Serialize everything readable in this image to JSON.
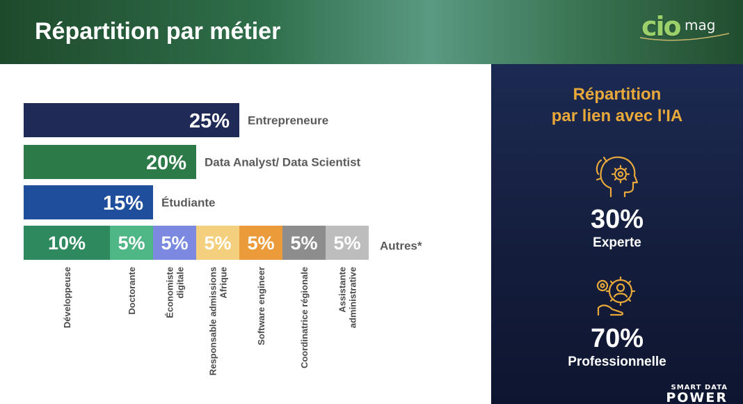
{
  "header": {
    "title": "Répartition par métier",
    "logo": {
      "main": "cio",
      "sub": "mag"
    }
  },
  "chart_data": {
    "type": "bar",
    "orientation": "horizontal",
    "xlim": [
      0,
      100
    ],
    "rows": [
      {
        "segments": [
          {
            "label": "25%",
            "value": 25,
            "color": "#1f2a57"
          }
        ],
        "category": "Entrepreneure"
      },
      {
        "segments": [
          {
            "label": "20%",
            "value": 20,
            "color": "#2b7a48"
          }
        ],
        "category": "Data Analyst/ Data Scientist"
      },
      {
        "segments": [
          {
            "label": "15%",
            "value": 15,
            "color": "#1f4f9c"
          }
        ],
        "category": "Étudiante"
      },
      {
        "category": "Autres*",
        "segments": [
          {
            "label": "10%",
            "value": 10,
            "color": "#2e8a5e",
            "sublabel": [
              "Développeuse"
            ]
          },
          {
            "label": "5%",
            "value": 5,
            "color": "#4fb685",
            "sublabel": [
              "Doctorante"
            ]
          },
          {
            "label": "5%",
            "value": 5,
            "color": "#7b8ae0",
            "sublabel": [
              "Économiste",
              "digitale"
            ]
          },
          {
            "label": "5%",
            "value": 5,
            "color": "#f3cf7e",
            "sublabel": [
              "Responsable admissions",
              "Afrique"
            ]
          },
          {
            "label": "5%",
            "value": 5,
            "color": "#ec9b3b",
            "sublabel": [
              "Software engineer"
            ]
          },
          {
            "label": "5%",
            "value": 5,
            "color": "#8d8d8d",
            "sublabel": [
              "Coordinatrice régionale"
            ]
          },
          {
            "label": "5%",
            "value": 5,
            "color": "#bdbdbd",
            "sublabel": [
              "Assistante",
              "administrative"
            ]
          }
        ]
      }
    ]
  },
  "side": {
    "title_line1": "Répartition",
    "title_line2": "par lien avec l'IA",
    "stats": [
      {
        "value": "30%",
        "label": "Experte",
        "icon": "head-gear-icon"
      },
      {
        "value": "70%",
        "label": "Professionnelle",
        "icon": "professional-gear-icon"
      }
    ],
    "accent_color": "#e8a93a"
  },
  "brand": {
    "top": "SMART DATA",
    "bottom": "POWER"
  }
}
